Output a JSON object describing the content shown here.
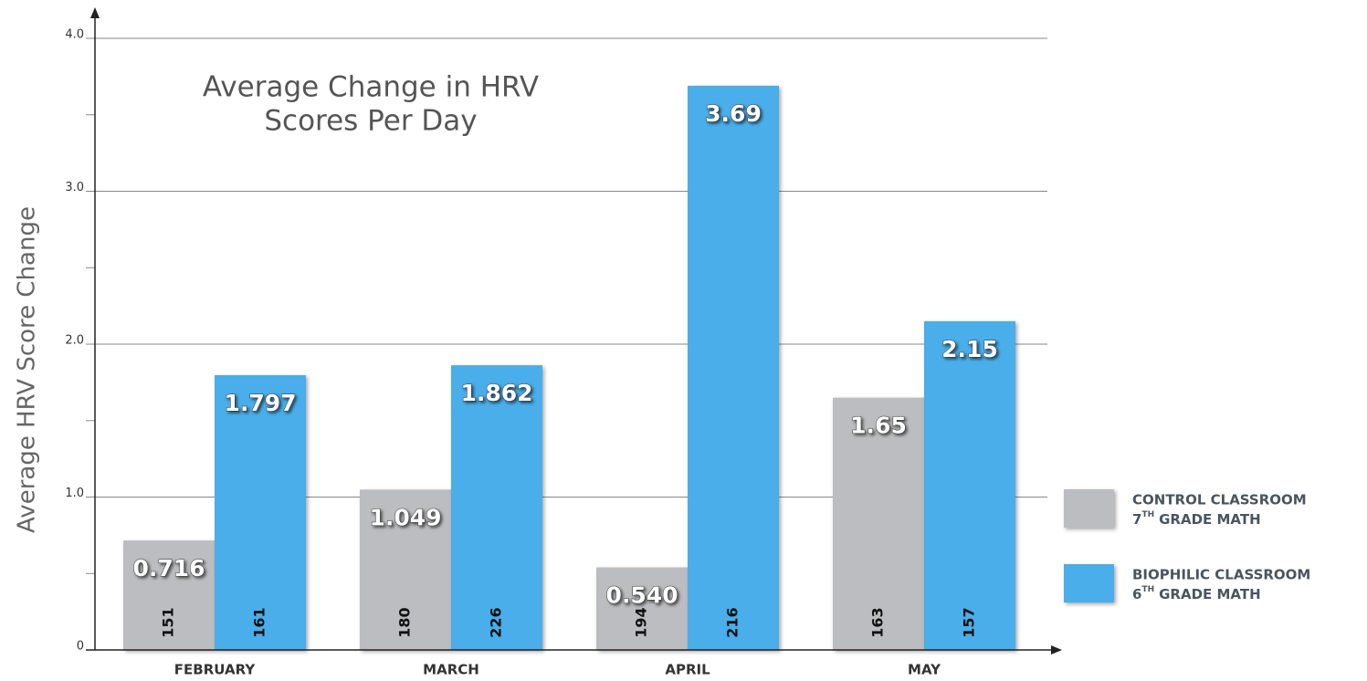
{
  "chart_data": {
    "type": "bar",
    "title": [
      "Average Change in HRV",
      "Scores Per Day"
    ],
    "ylabel": "Average HRV Score Change",
    "categories": [
      "FEBRUARY",
      "MARCH",
      "APRIL",
      "MAY"
    ],
    "series": [
      {
        "name": "CONTROL CLASSROOM",
        "detail": {
          "number": "7",
          "suffix": "TH",
          "text": "GRADE MATH"
        },
        "color": "#bcbdc0",
        "values": [
          0.716,
          1.049,
          0.54,
          1.65
        ],
        "value_labels": [
          "0.716",
          "1.049",
          "0.540",
          "1.65"
        ],
        "counts": [
          151,
          180,
          194,
          163
        ]
      },
      {
        "name": "BIOPHILIC CLASSROOM",
        "detail": {
          "number": "6",
          "suffix": "TH",
          "text": "GRADE MATH"
        },
        "color": "#4aaeea",
        "values": [
          1.797,
          1.862,
          3.69,
          2.15
        ],
        "value_labels": [
          "1.797",
          "1.862",
          "3.69",
          "2.15"
        ],
        "counts": [
          161,
          226,
          216,
          157
        ]
      }
    ],
    "ylim": [
      0,
      4
    ],
    "yticks": [
      0,
      {
        "value": 1,
        "label": "1.0"
      },
      {
        "value": 2,
        "label": "2.0"
      },
      {
        "value": 3,
        "label": "3.0"
      },
      {
        "value": 4,
        "label": "4.0"
      }
    ],
    "minor_yticks": [
      0.5,
      1.5,
      2.5,
      3.5
    ],
    "grid": true,
    "legend": "right"
  }
}
